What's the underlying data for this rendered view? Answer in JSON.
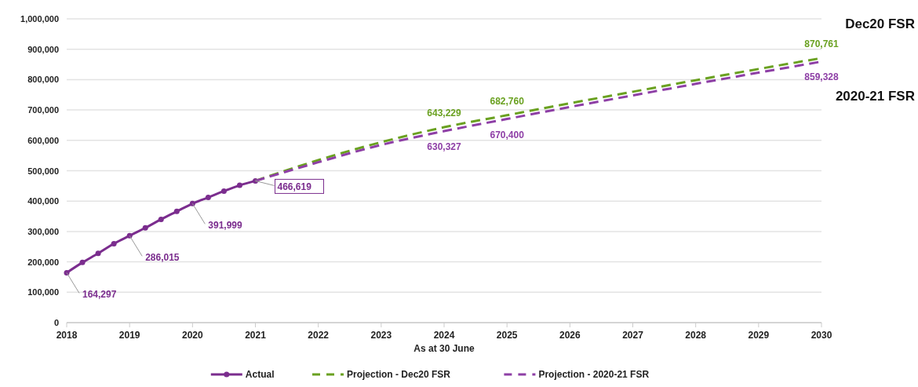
{
  "chart_data": {
    "type": "line",
    "xlabel": "As at 30 June",
    "xlim": [
      2018,
      2030
    ],
    "xticks": [
      2018,
      2019,
      2020,
      2021,
      2022,
      2023,
      2024,
      2025,
      2026,
      2027,
      2028,
      2029,
      2030
    ],
    "ylim": [
      0,
      1000000
    ],
    "yticks": [
      {
        "value": 0,
        "label": "0"
      },
      {
        "value": 100000,
        "label": "100,000"
      },
      {
        "value": 200000,
        "label": "200,000"
      },
      {
        "value": 300000,
        "label": "300,000"
      },
      {
        "value": 400000,
        "label": "400,000"
      },
      {
        "value": 500000,
        "label": "500,000"
      },
      {
        "value": 600000,
        "label": "600,000"
      },
      {
        "value": 700000,
        "label": "700,000"
      },
      {
        "value": 800000,
        "label": "800,000"
      },
      {
        "value": 900000,
        "label": "900,000"
      },
      {
        "value": 1000000,
        "label": "1,000,000"
      }
    ],
    "grid": "y",
    "legend": "bottom",
    "annotations": [
      "Dec20 FSR",
      "2020-21 FSR"
    ],
    "series": [
      {
        "name": "Actual",
        "color": "#7b2d8e",
        "marker": "circle",
        "line_style": "solid",
        "x": [
          2018,
          2018.25,
          2018.5,
          2018.75,
          2019,
          2019.25,
          2019.5,
          2019.75,
          2020,
          2020.25,
          2020.5,
          2020.75,
          2021
        ],
        "values": [
          164297,
          198000,
          228000,
          260000,
          286015,
          312000,
          340000,
          366000,
          391999,
          412000,
          433000,
          452000,
          466619
        ],
        "value_labels": [
          "164,297",
          null,
          null,
          null,
          "286,015",
          null,
          null,
          null,
          "391,999",
          null,
          null,
          null,
          "466,619"
        ]
      },
      {
        "name": "Projection - Dec20 FSR",
        "color": "#6aa121",
        "marker": "none",
        "line_style": "dashed",
        "x": [
          2021,
          2022,
          2023,
          2024,
          2025,
          2026,
          2027,
          2028,
          2029,
          2030
        ],
        "values": [
          466619,
          535000,
          594000,
          643229,
          682760,
          722000,
          760000,
          798000,
          835000,
          870761
        ],
        "value_labels": [
          null,
          null,
          null,
          "643,229",
          "682,760",
          null,
          null,
          null,
          null,
          "870,761"
        ]
      },
      {
        "name": "Projection - 2020-21 FSR",
        "color": "#8e3fa6",
        "marker": "none",
        "line_style": "dashed",
        "x": [
          2021,
          2022,
          2023,
          2024,
          2025,
          2026,
          2027,
          2028,
          2029,
          2030
        ],
        "values": [
          466619,
          528000,
          585000,
          630327,
          670400,
          710000,
          748000,
          786000,
          823000,
          859328
        ],
        "value_labels": [
          null,
          null,
          null,
          "630,327",
          "670,400",
          null,
          null,
          null,
          null,
          "859,328"
        ]
      }
    ]
  }
}
